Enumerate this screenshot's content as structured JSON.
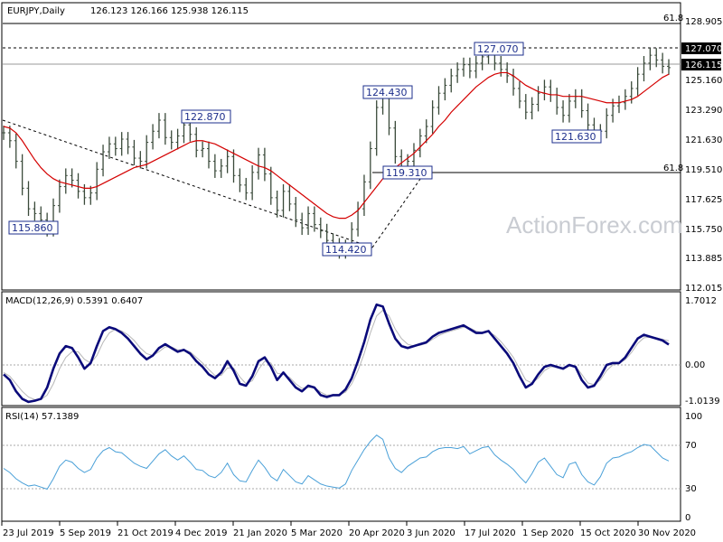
{
  "chart_data": [
    {
      "type": "line",
      "symbol": "EURJPY",
      "timeframe": "Daily",
      "header": {
        "symbol_tf": "EURJPY,Daily",
        "ohlc": "126.123 126.166 125.938 126.115"
      },
      "y_ticks": [
        "128.905",
        "127.070",
        "126.115",
        "125.160",
        "123.290",
        "121.630",
        "119.510",
        "117.625",
        "115.750",
        "113.885",
        "112.015"
      ],
      "ylim": [
        112.015,
        128.905
      ],
      "x_tick_labels": [
        "23 Jul 2019",
        "5 Sep 2019",
        "21 Oct 2019",
        "4 Dec 2019",
        "21 Jan 2020",
        "5 Mar 2020",
        "20 Apr 2020",
        "3 Jun 2020",
        "17 Jul 2020",
        "1 Sep 2020",
        "15 Oct 2020",
        "30 Nov 2020"
      ],
      "price_labels": [
        {
          "text": "115.860",
          "date": "Oct 2019",
          "value": 115.86
        },
        {
          "text": "122.870",
          "date": "Dec 2019",
          "value": 122.87
        },
        {
          "text": "114.420",
          "date": "May 2020",
          "value": 114.42
        },
        {
          "text": "124.430",
          "date": "Jun 2020",
          "value": 124.43
        },
        {
          "text": "119.310",
          "date": "Jun 2020",
          "value": 119.31
        },
        {
          "text": "127.070",
          "date": "Aug 2020",
          "value": 127.07
        },
        {
          "text": "121.630",
          "date": "Oct 2020",
          "value": 121.63
        }
      ],
      "fib_labels": [
        "61.8",
        "61.8"
      ],
      "fib_levels": [
        128.6,
        119.31
      ],
      "resistance_level": 127.07,
      "last_price_label": "126.115",
      "current_price": 126.115,
      "price_close": [
        122.0,
        121.5,
        120.2,
        118.5,
        117.2,
        116.9,
        116.5,
        115.9,
        117.4,
        118.6,
        119.3,
        119.0,
        118.3,
        117.9,
        118.2,
        119.7,
        120.8,
        121.3,
        121.0,
        121.6,
        121.1,
        120.4,
        120.2,
        121.4,
        122.1,
        122.8,
        121.7,
        121.4,
        121.8,
        122.5,
        121.9,
        120.9,
        121.0,
        120.2,
        119.6,
        119.9,
        120.5,
        119.3,
        118.7,
        118.2,
        119.5,
        120.6,
        119.4,
        117.9,
        117.1,
        118.3,
        117.5,
        116.5,
        116.0,
        116.9,
        116.2,
        115.8,
        115.2,
        114.9,
        114.5,
        114.8,
        115.9,
        117.2,
        118.9,
        121.0,
        123.6,
        124.4,
        122.3,
        120.5,
        119.6,
        120.2,
        120.9,
        121.8,
        122.4,
        123.6,
        124.5,
        125.0,
        125.6,
        126.0,
        126.3,
        125.9,
        126.4,
        126.8,
        127.0,
        126.4,
        126.0,
        125.6,
        124.8,
        124.0,
        123.3,
        123.8,
        124.5,
        124.9,
        124.4,
        123.6,
        123.1,
        124.0,
        124.3,
        123.4,
        122.5,
        121.8,
        122.1,
        123.1,
        123.7,
        123.9,
        124.3,
        124.8,
        125.7,
        126.4,
        126.9,
        126.6,
        126.2,
        126.115
      ],
      "price_ma": [
        122.4,
        122.3,
        122.0,
        121.5,
        120.9,
        120.3,
        119.8,
        119.4,
        119.1,
        118.9,
        118.8,
        118.7,
        118.6,
        118.5,
        118.5,
        118.6,
        118.8,
        119.0,
        119.2,
        119.4,
        119.6,
        119.8,
        119.9,
        120.0,
        120.2,
        120.4,
        120.6,
        120.8,
        121.0,
        121.2,
        121.4,
        121.5,
        121.5,
        121.4,
        121.3,
        121.1,
        120.9,
        120.7,
        120.5,
        120.3,
        120.1,
        119.9,
        119.8,
        119.6,
        119.3,
        119.0,
        118.7,
        118.4,
        118.1,
        117.8,
        117.5,
        117.2,
        116.9,
        116.7,
        116.6,
        116.6,
        116.8,
        117.1,
        117.6,
        118.1,
        118.6,
        119.1,
        119.5,
        119.8,
        120.1,
        120.4,
        120.7,
        121.1,
        121.5,
        121.9,
        122.4,
        122.8,
        123.3,
        123.7,
        124.1,
        124.5,
        124.9,
        125.2,
        125.5,
        125.7,
        125.8,
        125.8,
        125.6,
        125.3,
        125.0,
        124.8,
        124.6,
        124.5,
        124.4,
        124.4,
        124.3,
        124.3,
        124.3,
        124.3,
        124.2,
        124.1,
        124.0,
        123.9,
        123.9,
        123.9,
        124.0,
        124.1,
        124.3,
        124.6,
        124.9,
        125.2,
        125.5,
        125.7
      ],
      "series": [
        {
          "name": "EURJPY",
          "values": "price_close"
        }
      ]
    },
    {
      "type": "line",
      "title": "MACD(12,26,9) 0.5391 0.6407",
      "y_ticks": [
        "1.7012",
        "0.00",
        "-1.0139"
      ],
      "ylim": [
        -1.0139,
        1.7012
      ],
      "macd_line": [
        -0.25,
        -0.4,
        -0.7,
        -0.9,
        -0.98,
        -0.95,
        -0.9,
        -0.6,
        -0.1,
        0.3,
        0.5,
        0.45,
        0.2,
        -0.1,
        0.05,
        0.5,
        0.9,
        1.0,
        0.95,
        0.85,
        0.7,
        0.5,
        0.3,
        0.15,
        0.25,
        0.45,
        0.55,
        0.45,
        0.35,
        0.4,
        0.3,
        0.1,
        -0.05,
        -0.25,
        -0.35,
        -0.2,
        0.1,
        -0.15,
        -0.5,
        -0.55,
        -0.3,
        0.1,
        0.2,
        -0.05,
        -0.4,
        -0.2,
        -0.4,
        -0.6,
        -0.7,
        -0.55,
        -0.6,
        -0.8,
        -0.85,
        -0.8,
        -0.8,
        -0.65,
        -0.35,
        0.1,
        0.6,
        1.2,
        1.6,
        1.55,
        1.1,
        0.7,
        0.5,
        0.45,
        0.5,
        0.55,
        0.6,
        0.75,
        0.85,
        0.9,
        0.95,
        1.0,
        1.05,
        0.95,
        0.85,
        0.85,
        0.9,
        0.7,
        0.5,
        0.3,
        0.05,
        -0.3,
        -0.6,
        -0.5,
        -0.25,
        -0.05,
        0.0,
        -0.05,
        -0.1,
        0.0,
        -0.05,
        -0.4,
        -0.6,
        -0.55,
        -0.3,
        0.0,
        0.05,
        0.05,
        0.2,
        0.45,
        0.7,
        0.8,
        0.75,
        0.7,
        0.65,
        0.54
      ],
      "signal_line": [
        -0.2,
        -0.3,
        -0.5,
        -0.7,
        -0.85,
        -0.92,
        -0.92,
        -0.8,
        -0.5,
        -0.1,
        0.2,
        0.35,
        0.35,
        0.15,
        0.05,
        0.25,
        0.6,
        0.85,
        0.95,
        0.9,
        0.8,
        0.65,
        0.45,
        0.3,
        0.25,
        0.35,
        0.48,
        0.48,
        0.4,
        0.4,
        0.35,
        0.2,
        0.05,
        -0.12,
        -0.28,
        -0.28,
        -0.08,
        -0.08,
        -0.32,
        -0.5,
        -0.42,
        -0.12,
        0.1,
        0.05,
        -0.22,
        -0.25,
        -0.33,
        -0.5,
        -0.62,
        -0.6,
        -0.6,
        -0.72,
        -0.8,
        -0.8,
        -0.8,
        -0.72,
        -0.5,
        -0.15,
        0.3,
        0.85,
        1.3,
        1.45,
        1.3,
        0.95,
        0.7,
        0.55,
        0.5,
        0.52,
        0.57,
        0.68,
        0.78,
        0.85,
        0.9,
        0.95,
        1.0,
        0.98,
        0.9,
        0.86,
        0.88,
        0.78,
        0.62,
        0.42,
        0.2,
        -0.1,
        -0.4,
        -0.48,
        -0.35,
        -0.15,
        -0.05,
        -0.05,
        -0.08,
        -0.03,
        -0.03,
        -0.25,
        -0.48,
        -0.52,
        -0.4,
        -0.15,
        0.0,
        0.04,
        0.14,
        0.33,
        0.57,
        0.72,
        0.74,
        0.72,
        0.68,
        0.64
      ]
    },
    {
      "type": "line",
      "title": "RSI(14) 57.1389",
      "y_ticks": [
        "100",
        "70",
        "30",
        "0"
      ],
      "ylim": [
        0,
        100
      ],
      "levels": [
        70,
        30
      ],
      "rsi": [
        50,
        46,
        40,
        36,
        33,
        34,
        32,
        30,
        40,
        52,
        58,
        56,
        50,
        46,
        49,
        60,
        67,
        70,
        66,
        65,
        60,
        55,
        52,
        50,
        57,
        64,
        68,
        62,
        58,
        62,
        56,
        49,
        48,
        43,
        41,
        46,
        55,
        44,
        38,
        37,
        48,
        58,
        51,
        42,
        38,
        49,
        43,
        37,
        35,
        43,
        39,
        35,
        33,
        32,
        31,
        35,
        48,
        58,
        68,
        76,
        82,
        78,
        60,
        50,
        46,
        52,
        56,
        60,
        61,
        66,
        69,
        70,
        70,
        69,
        71,
        64,
        67,
        70,
        71,
        63,
        58,
        54,
        49,
        42,
        36,
        45,
        56,
        60,
        52,
        44,
        41,
        54,
        56,
        44,
        37,
        34,
        42,
        55,
        60,
        61,
        64,
        66,
        70,
        73,
        72,
        66,
        60,
        57.1
      ]
    }
  ],
  "watermark": "ActionForex.com",
  "colors": {
    "price": "#3a4a3a",
    "ma": "#d40000",
    "macd": "#0a0a7a",
    "signal": "#b8b8b8",
    "rsi": "#4aa0d8",
    "label_border": "#1e2f8c"
  }
}
